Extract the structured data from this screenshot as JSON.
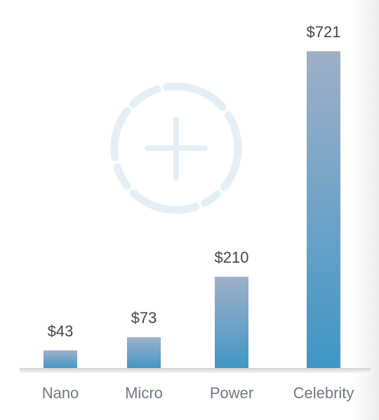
{
  "chart_data": {
    "type": "bar",
    "categories": [
      "Nano",
      "Micro",
      "Power",
      "Celebrity"
    ],
    "values": [
      43,
      73,
      210,
      721
    ],
    "value_labels": [
      "$43",
      "$73",
      "$210",
      "$721"
    ],
    "ylim": [
      0,
      721
    ],
    "grid": false,
    "legend": "none",
    "bar_gradient": [
      "#9fb0c8",
      "#3f96c6"
    ],
    "baseline_color": "#d6d8db",
    "value_label_color": "#3f4650",
    "category_label_color": "#6f7882"
  },
  "watermark": {
    "icon": "plus-circle-icon",
    "color": "#e4eff5"
  }
}
